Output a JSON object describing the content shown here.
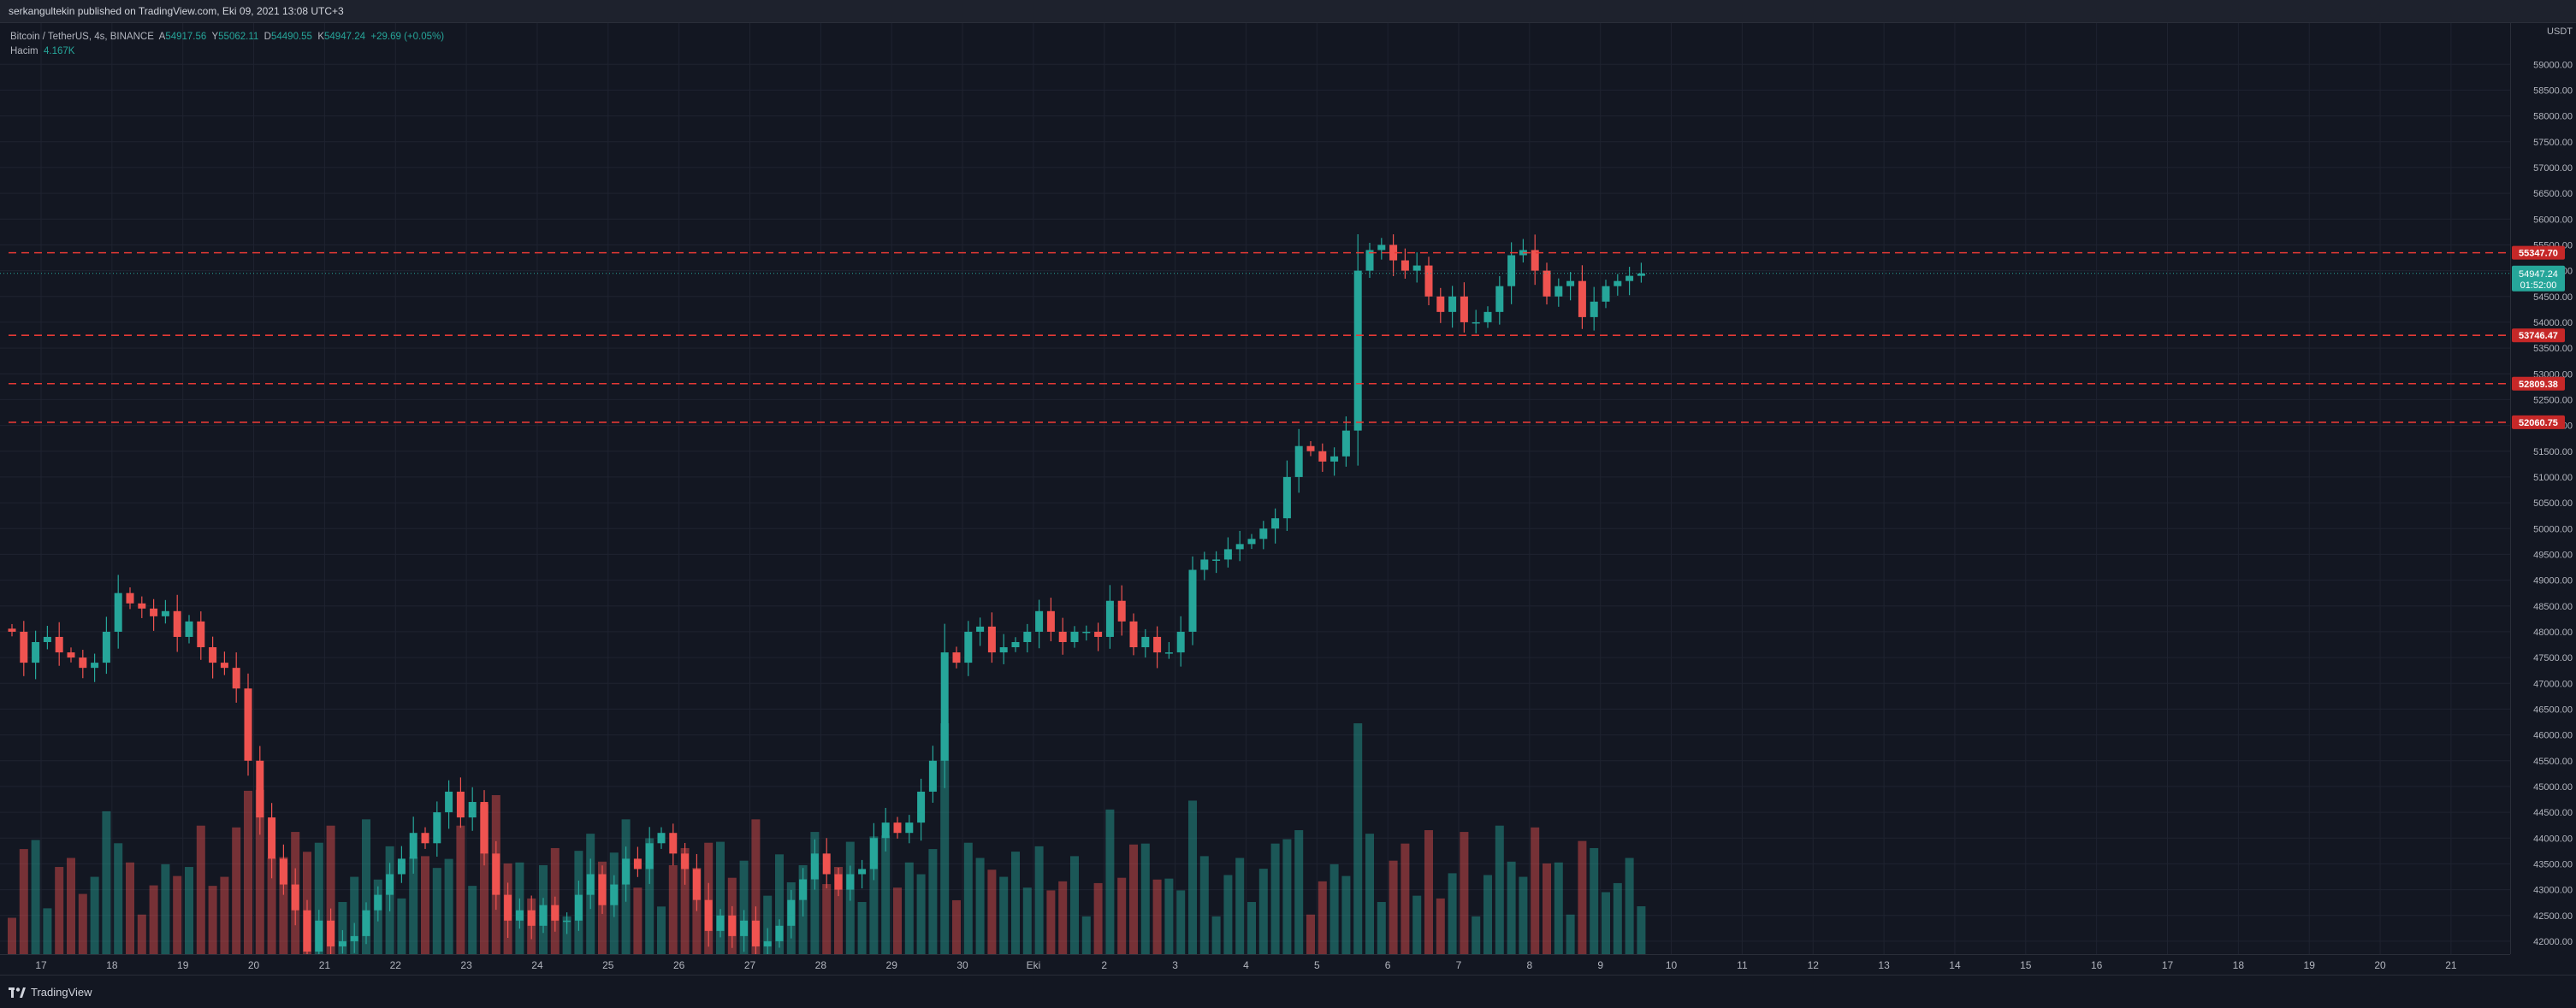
{
  "header": {
    "publisher_text": "serkangultekin published on TradingView.com, Eki 09, 2021 13:08 UTC+3"
  },
  "legend": {
    "symbol": "Bitcoin / TetherUS, 4s, BINANCE",
    "open_label": "A",
    "open": "54917.56",
    "high_label": "Y",
    "high": "55062.11",
    "low_label": "D",
    "low": "54490.55",
    "close_label": "K",
    "close": "54947.24",
    "change": "+29.69 (+0.05%)",
    "volume_label": "Hacim",
    "volume_value": "4.167K"
  },
  "footer": {
    "brand": "TradingView"
  },
  "colors": {
    "up": "#26a69a",
    "down": "#ef5350",
    "level": "#e53935",
    "background": "#131722",
    "grid": "#1f2330"
  },
  "chart_data": {
    "type": "candlestick",
    "title": "Bitcoin / TetherUS, 4s, BINANCE",
    "currency": "USDT",
    "ylim": [
      41750,
      59800
    ],
    "y_ticks": [
      42000,
      42500,
      43000,
      43500,
      44000,
      44500,
      45000,
      45500,
      46000,
      46500,
      47000,
      47500,
      48000,
      48500,
      49000,
      49500,
      50000,
      50500,
      51000,
      51500,
      52000,
      52500,
      53000,
      53500,
      54000,
      54500,
      55000,
      55500,
      56000,
      56500,
      57000,
      57500,
      58000,
      58500,
      59000
    ],
    "x_ticks": [
      "17",
      "18",
      "19",
      "20",
      "21",
      "22",
      "23",
      "24",
      "25",
      "26",
      "27",
      "28",
      "29",
      "30",
      "Eki",
      "2",
      "3",
      "4",
      "5",
      "6",
      "7",
      "8",
      "9",
      "10",
      "11",
      "12",
      "13",
      "14",
      "15",
      "16",
      "17",
      "18",
      "19",
      "20",
      "21"
    ],
    "current_price": {
      "value": 54947.24,
      "label": "54947.24",
      "countdown": "01:52:00"
    },
    "levels": [
      {
        "value": 55347.7,
        "label": "55347.70"
      },
      {
        "value": 53746.47,
        "label": "53746.47"
      },
      {
        "value": 52809.38,
        "label": "52809.38"
      },
      {
        "value": 52060.75,
        "label": "52060.75"
      }
    ],
    "volume_max": 4.4,
    "candle_closes": [
      48000,
      47400,
      47800,
      47900,
      47600,
      47500,
      47300,
      47400,
      48000,
      48750,
      48550,
      48450,
      48300,
      48400,
      47900,
      48200,
      47700,
      47400,
      47300,
      46900,
      45500,
      44400,
      43600,
      43100,
      42600,
      41800,
      42400,
      41900,
      42000,
      42100,
      42600,
      42900,
      43300,
      43600,
      44100,
      43900,
      44500,
      44900,
      44400,
      44700,
      43700,
      42900,
      42400,
      42600,
      42300,
      42700,
      42400,
      42400,
      42900,
      43300,
      42700,
      43100,
      43600,
      43400,
      43900,
      44100,
      43700,
      43400,
      42800,
      42200,
      42500,
      42100,
      42400,
      41900,
      42000,
      42300,
      42800,
      43200,
      43700,
      43300,
      43000,
      43300,
      43400,
      44000,
      44300,
      44100,
      44300,
      44900,
      45500,
      47600,
      47400,
      48000,
      48100,
      47600,
      47700,
      47800,
      48000,
      48400,
      48000,
      47800,
      48000,
      48000,
      47900,
      48600,
      48200,
      47700,
      47900,
      47600,
      47600,
      48000,
      49200,
      49400,
      49400,
      49600,
      49700,
      49800,
      50000,
      50200,
      51000,
      51600,
      51500,
      51300,
      51400,
      51900,
      55000,
      55400,
      55500,
      55200,
      55000,
      55100,
      54500,
      54200,
      54500,
      54000,
      54000,
      54200,
      54700,
      55300,
      55400,
      55000,
      54500,
      54700,
      54800,
      54100,
      54400,
      54700,
      54800,
      54900,
      54947
    ]
  }
}
